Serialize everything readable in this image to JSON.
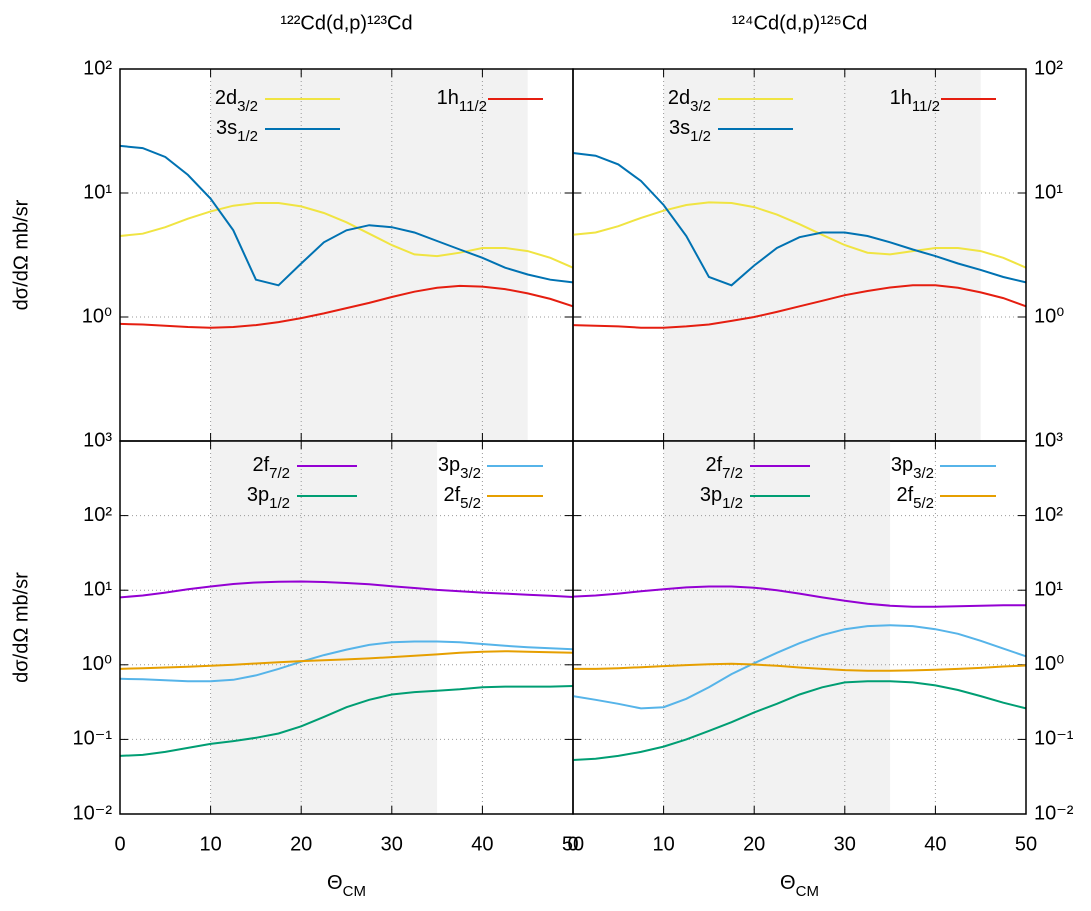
{
  "chart_data": [
    {
      "type": "line",
      "title": "¹²²Cd(d,p)¹²³Cd",
      "ylabel": "dσ/dΩ mb/sr",
      "ytick_side": "left",
      "x": [
        0,
        2.5,
        5,
        7.5,
        10,
        12.5,
        15,
        17.5,
        20,
        22.5,
        25,
        27.5,
        30,
        32.5,
        35,
        37.5,
        40,
        42.5,
        45,
        47.5,
        50
      ],
      "xlim": [
        0,
        50
      ],
      "xticks": [
        0,
        10,
        20,
        30,
        40,
        50
      ],
      "ylim": [
        0.1,
        100
      ],
      "log_y": true,
      "grid": true,
      "shaded": [
        10,
        45
      ],
      "yticks": [
        {
          "value": 100,
          "label": "10²"
        },
        {
          "value": 10,
          "label": "10¹"
        },
        {
          "value": 1,
          "label": "10⁰"
        }
      ],
      "series": [
        {
          "name": "2d",
          "name_sub": "3/2",
          "color": "#f0e442",
          "values": [
            4.5,
            4.7,
            5.3,
            6.2,
            7.1,
            7.9,
            8.3,
            8.3,
            7.8,
            6.9,
            5.8,
            4.7,
            3.8,
            3.2,
            3.1,
            3.3,
            3.6,
            3.6,
            3.4,
            3.0,
            2.5
          ]
        },
        {
          "name": "3s",
          "name_sub": "1/2",
          "color": "#0072b2",
          "values": [
            24,
            23,
            19.5,
            14,
            9,
            5,
            2.0,
            1.8,
            2.7,
            4.0,
            5.0,
            5.5,
            5.3,
            4.8,
            4.1,
            3.5,
            3.0,
            2.5,
            2.2,
            2.0,
            1.9
          ]
        },
        {
          "name": "1h",
          "name_sub": "11/2",
          "color": "#e51e10",
          "values": [
            0.88,
            0.87,
            0.85,
            0.83,
            0.82,
            0.83,
            0.86,
            0.91,
            0.98,
            1.07,
            1.18,
            1.3,
            1.45,
            1.6,
            1.72,
            1.78,
            1.76,
            1.68,
            1.55,
            1.4,
            1.22
          ]
        }
      ]
    },
    {
      "type": "line",
      "title": "¹²⁴Cd(d,p)¹²⁵Cd",
      "ytick_side": "right",
      "x": [
        0,
        2.5,
        5,
        7.5,
        10,
        12.5,
        15,
        17.5,
        20,
        22.5,
        25,
        27.5,
        30,
        32.5,
        35,
        37.5,
        40,
        42.5,
        45,
        47.5,
        50
      ],
      "xlim": [
        0,
        50
      ],
      "xticks": [
        0,
        10,
        20,
        30,
        40,
        50
      ],
      "ylim": [
        0.1,
        100
      ],
      "log_y": true,
      "grid": true,
      "shaded": [
        10,
        45
      ],
      "yticks": [
        {
          "value": 100,
          "label": "10²"
        },
        {
          "value": 10,
          "label": "10¹"
        },
        {
          "value": 1,
          "label": "10⁰"
        }
      ],
      "series": [
        {
          "name": "2d",
          "name_sub": "3/2",
          "color": "#f0e442",
          "values": [
            4.6,
            4.8,
            5.4,
            6.3,
            7.2,
            8.0,
            8.4,
            8.3,
            7.7,
            6.7,
            5.6,
            4.6,
            3.8,
            3.3,
            3.2,
            3.4,
            3.6,
            3.6,
            3.4,
            3.0,
            2.5
          ]
        },
        {
          "name": "3s",
          "name_sub": "1/2",
          "color": "#0072b2",
          "values": [
            21,
            20,
            17,
            12.5,
            8,
            4.5,
            2.1,
            1.8,
            2.6,
            3.6,
            4.4,
            4.8,
            4.8,
            4.5,
            4.0,
            3.5,
            3.1,
            2.7,
            2.4,
            2.1,
            1.9
          ]
        },
        {
          "name": "1h",
          "name_sub": "11/2",
          "color": "#e51e10",
          "values": [
            0.86,
            0.85,
            0.84,
            0.82,
            0.82,
            0.84,
            0.87,
            0.93,
            1.0,
            1.1,
            1.22,
            1.35,
            1.5,
            1.62,
            1.73,
            1.8,
            1.8,
            1.72,
            1.58,
            1.42,
            1.22
          ]
        }
      ]
    },
    {
      "type": "line",
      "ylabel": "dσ/dΩ mb/sr",
      "xlabel": "Θ",
      "xlabel_sub": "CM",
      "ytick_side": "left",
      "x": [
        0,
        2.5,
        5,
        7.5,
        10,
        12.5,
        15,
        17.5,
        20,
        22.5,
        25,
        27.5,
        30,
        32.5,
        35,
        37.5,
        40,
        42.5,
        45,
        47.5,
        50
      ],
      "xlim": [
        0,
        50
      ],
      "xticks": [
        0,
        10,
        20,
        30,
        40,
        50
      ],
      "ylim": [
        0.01,
        1000
      ],
      "log_y": true,
      "grid": true,
      "shaded": [
        10,
        35
      ],
      "yticks": [
        {
          "value": 1000,
          "label": "10³"
        },
        {
          "value": 100,
          "label": "10²"
        },
        {
          "value": 10,
          "label": "10¹"
        },
        {
          "value": 1,
          "label": "10⁰"
        },
        {
          "value": 0.1,
          "label": "10⁻¹"
        },
        {
          "value": 0.01,
          "label": "10⁻²"
        }
      ],
      "series": [
        {
          "name": "2f",
          "name_sub": "7/2",
          "color": "#9400d3",
          "values": [
            8.0,
            8.5,
            9.3,
            10.3,
            11.2,
            12.1,
            12.7,
            13.0,
            13.1,
            12.9,
            12.5,
            12.0,
            11.3,
            10.7,
            10.1,
            9.7,
            9.3,
            9.0,
            8.7,
            8.4,
            8.1
          ]
        },
        {
          "name": "3p",
          "name_sub": "1/2",
          "color": "#009e73",
          "values": [
            0.06,
            0.062,
            0.068,
            0.077,
            0.087,
            0.095,
            0.105,
            0.12,
            0.15,
            0.2,
            0.27,
            0.34,
            0.4,
            0.43,
            0.45,
            0.47,
            0.5,
            0.51,
            0.51,
            0.51,
            0.52
          ]
        },
        {
          "name": "3p",
          "name_sub": "3/2",
          "color": "#56b4e9",
          "values": [
            0.65,
            0.64,
            0.62,
            0.6,
            0.6,
            0.63,
            0.72,
            0.88,
            1.1,
            1.35,
            1.6,
            1.85,
            2.0,
            2.05,
            2.05,
            2.0,
            1.9,
            1.8,
            1.72,
            1.67,
            1.62
          ]
        },
        {
          "name": "2f",
          "name_sub": "5/2",
          "color": "#e69f00",
          "values": [
            0.88,
            0.9,
            0.92,
            0.94,
            0.97,
            1.0,
            1.04,
            1.08,
            1.12,
            1.15,
            1.18,
            1.22,
            1.27,
            1.32,
            1.38,
            1.45,
            1.5,
            1.52,
            1.5,
            1.47,
            1.45
          ]
        }
      ]
    },
    {
      "type": "line",
      "xlabel": "Θ",
      "xlabel_sub": "CM",
      "ytick_side": "right",
      "x": [
        0,
        2.5,
        5,
        7.5,
        10,
        12.5,
        15,
        17.5,
        20,
        22.5,
        25,
        27.5,
        30,
        32.5,
        35,
        37.5,
        40,
        42.5,
        45,
        47.5,
        50
      ],
      "xlim": [
        0,
        50
      ],
      "xticks": [
        0,
        10,
        20,
        30,
        40,
        50
      ],
      "ylim": [
        0.01,
        1000
      ],
      "log_y": true,
      "grid": true,
      "shaded": [
        10,
        35
      ],
      "yticks": [
        {
          "value": 1000,
          "label": "10³"
        },
        {
          "value": 100,
          "label": "10²"
        },
        {
          "value": 10,
          "label": "10¹"
        },
        {
          "value": 1,
          "label": "10⁰"
        },
        {
          "value": 0.1,
          "label": "10⁻¹"
        },
        {
          "value": 0.01,
          "label": "10⁻²"
        }
      ],
      "series": [
        {
          "name": "2f",
          "name_sub": "7/2",
          "color": "#9400d3",
          "values": [
            8.2,
            8.5,
            9.0,
            9.7,
            10.3,
            10.9,
            11.2,
            11.2,
            10.8,
            10.0,
            9.0,
            8.0,
            7.2,
            6.6,
            6.2,
            6.0,
            6.0,
            6.1,
            6.2,
            6.3,
            6.3
          ]
        },
        {
          "name": "3p",
          "name_sub": "1/2",
          "color": "#009e73",
          "values": [
            0.053,
            0.055,
            0.06,
            0.068,
            0.08,
            0.1,
            0.13,
            0.17,
            0.23,
            0.3,
            0.4,
            0.5,
            0.58,
            0.6,
            0.6,
            0.58,
            0.53,
            0.46,
            0.38,
            0.31,
            0.26
          ]
        },
        {
          "name": "3p",
          "name_sub": "3/2",
          "color": "#56b4e9",
          "values": [
            0.38,
            0.34,
            0.3,
            0.26,
            0.27,
            0.35,
            0.5,
            0.75,
            1.05,
            1.45,
            1.95,
            2.5,
            3.0,
            3.3,
            3.4,
            3.3,
            3.0,
            2.6,
            2.1,
            1.65,
            1.3
          ]
        },
        {
          "name": "2f",
          "name_sub": "5/2",
          "color": "#e69f00",
          "values": [
            0.88,
            0.88,
            0.9,
            0.93,
            0.96,
            0.99,
            1.02,
            1.03,
            1.01,
            0.97,
            0.92,
            0.88,
            0.85,
            0.83,
            0.83,
            0.84,
            0.86,
            0.88,
            0.91,
            0.95,
            0.98
          ]
        }
      ]
    }
  ]
}
